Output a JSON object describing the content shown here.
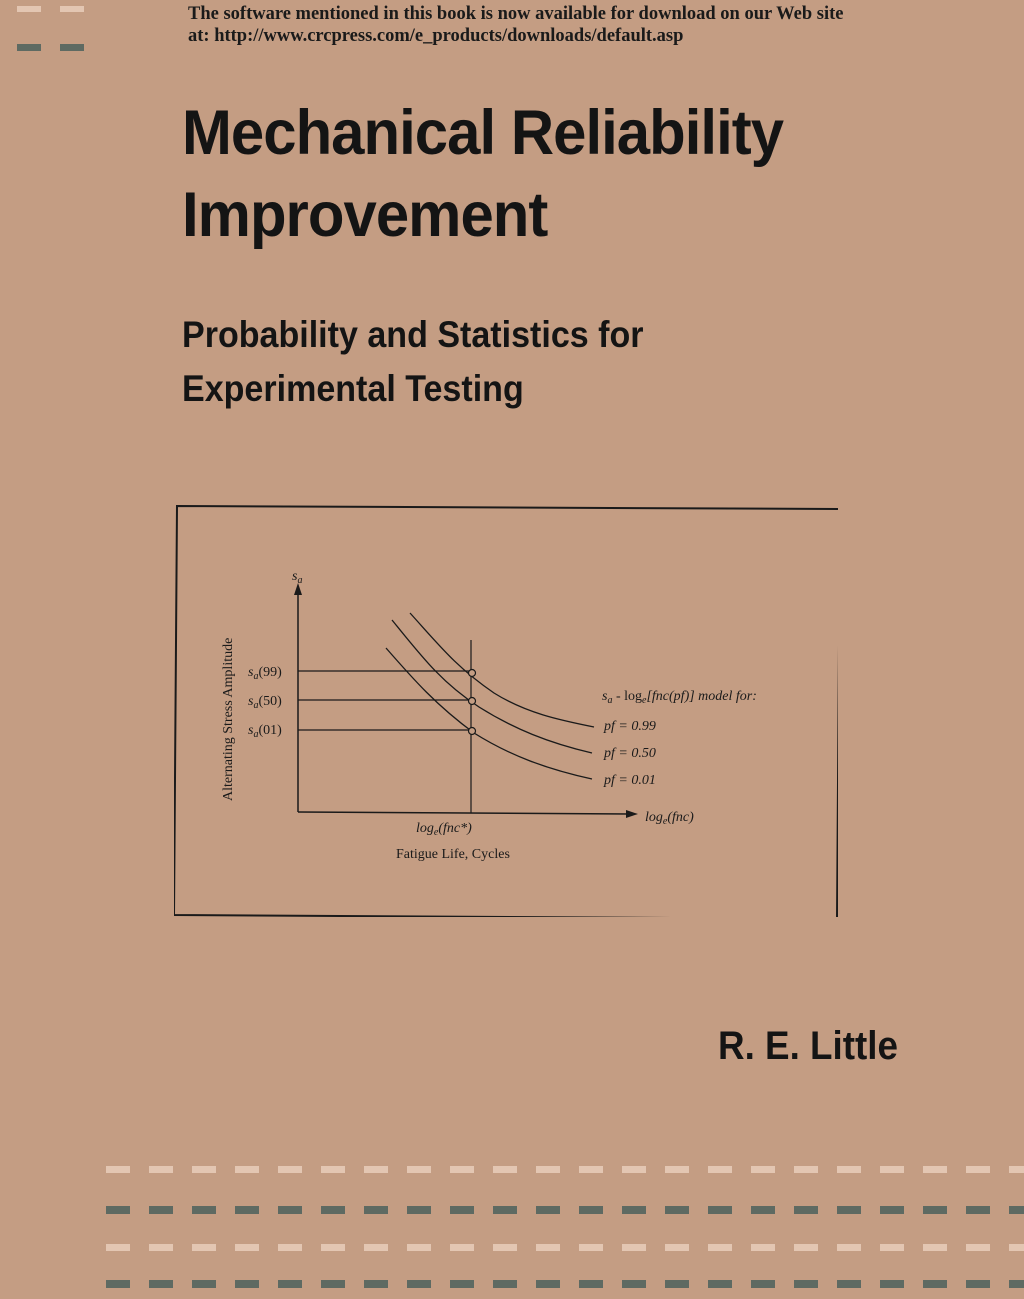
{
  "notice": {
    "line1": "The software mentioned in this book is now available for download on our Web site",
    "line2": "at: http://www.crcpress.com/e_products/downloads/default.asp"
  },
  "title": {
    "line1": "Mechanical Reliability",
    "line2": "Improvement"
  },
  "subtitle": {
    "line1": "Probability and Statistics for",
    "line2": "Experimental Testing"
  },
  "figure": {
    "y_symbol": "s",
    "y_symbol_sub": "a",
    "y_axis_label": "Alternating Stress Amplitude",
    "y_levels": [
      {
        "label_s": "s",
        "label_sub": "a",
        "label_rest": "(99)"
      },
      {
        "label_s": "s",
        "label_sub": "a",
        "label_rest": "(50)"
      },
      {
        "label_s": "s",
        "label_sub": "a",
        "label_rest": "(01)"
      }
    ],
    "x_tick_label": "log",
    "x_tick_sub": "e",
    "x_tick_rest": "(fnc*)",
    "x_axis_end": "log",
    "x_axis_end_sub": "e",
    "x_axis_end_rest": "(fnc)",
    "x_axis_label": "Fatigue Life, Cycles",
    "legend_title_s": "s",
    "legend_title_sub": "a",
    "legend_title_mid": " - log",
    "legend_title_sub2": "e",
    "legend_title_rest": "[fnc(pf)] model for:",
    "curves": [
      {
        "label": "pf = 0.99"
      },
      {
        "label": "pf = 0.50"
      },
      {
        "label": "pf = 0.01"
      }
    ]
  },
  "author": "R. E. Little",
  "colors": {
    "background": "#c49d83",
    "dash_light": "#e3c6b2",
    "dash_dark": "#5e6a62"
  }
}
